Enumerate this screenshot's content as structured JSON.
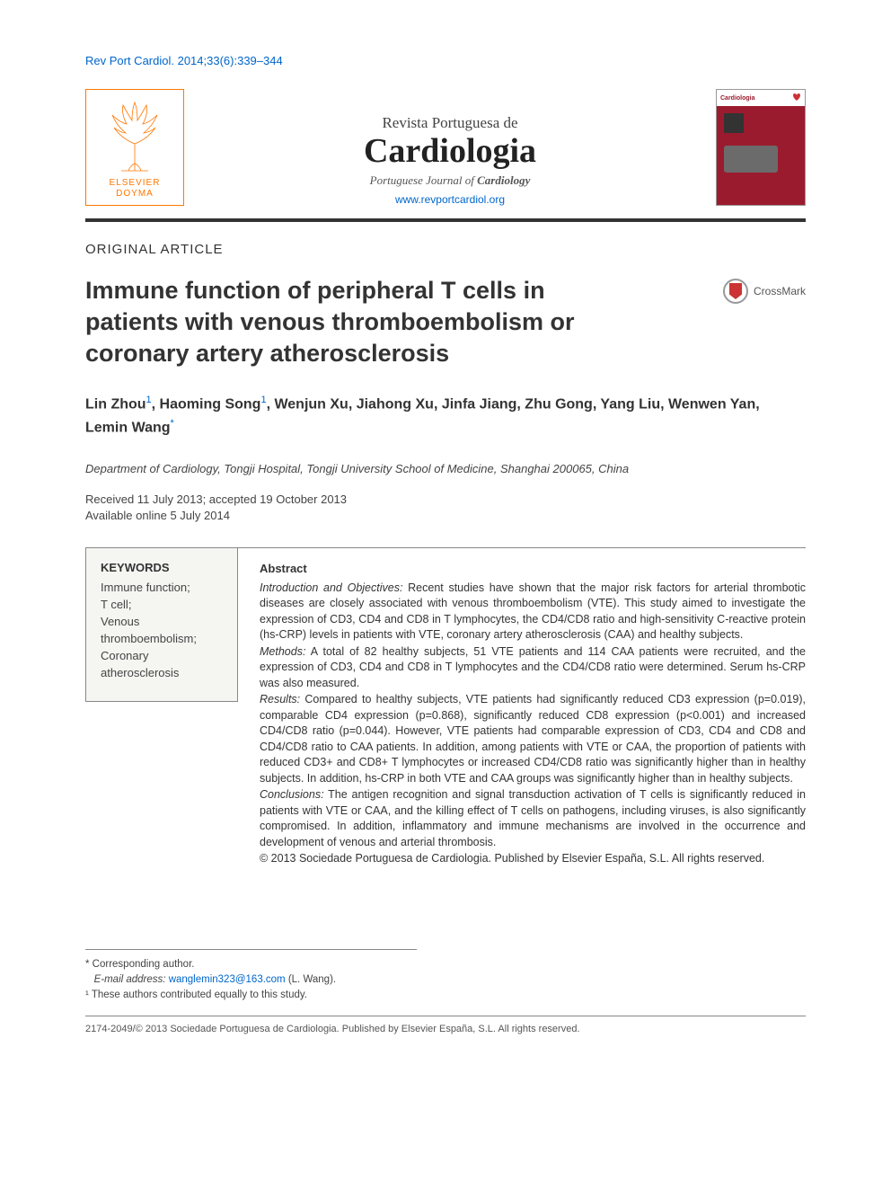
{
  "citation": "Rev Port Cardiol. 2014;33(6):339–344",
  "header": {
    "publisher_logo_top": "ELSEVIER",
    "publisher_logo_bottom": "DOYMA",
    "journal_overline": "Revista Portuguesa de",
    "journal_title": "Cardiologia",
    "journal_subtitle_pre": "Portuguese Journal of ",
    "journal_subtitle_bold": "Cardiology",
    "journal_url": "www.revportcardiol.org",
    "cover_label": "Cardiologia"
  },
  "article": {
    "type": "ORIGINAL ARTICLE",
    "title": "Immune function of peripheral T cells in patients with venous thromboembolism or coronary artery atherosclerosis",
    "crossmark": "CrossMark",
    "authors_html": "Lin Zhou<sup>1</sup>, Haoming Song<sup>1</sup>, Wenjun Xu, Jiahong Xu, Jinfa Jiang, Zhu Gong, Yang Liu, Wenwen Yan, Lemin Wang<sup>*</sup>",
    "affiliation": "Department of Cardiology, Tongji Hospital, Tongji University School of Medicine, Shanghai 200065, China",
    "received": "Received 11 July 2013; accepted 19 October 2013",
    "available": "Available online 5 July 2014"
  },
  "keywords": {
    "heading": "KEYWORDS",
    "items": "Immune function;\nT cell;\nVenous thromboembolism;\nCoronary atherosclerosis"
  },
  "abstract": {
    "heading": "Abstract",
    "intro_label": "Introduction and Objectives:",
    "intro_text": " Recent studies have shown that the major risk factors for arterial thrombotic diseases are closely associated with venous thromboembolism (VTE). This study aimed to investigate the expression of CD3, CD4 and CD8 in T lymphocytes, the CD4/CD8 ratio and high-sensitivity C-reactive protein (hs-CRP) levels in patients with VTE, coronary artery atherosclerosis (CAA) and healthy subjects.",
    "methods_label": "Methods:",
    "methods_text": " A total of 82 healthy subjects, 51 VTE patients and 114 CAA patients were recruited, and the expression of CD3, CD4 and CD8 in T lymphocytes and the CD4/CD8 ratio were determined. Serum hs-CRP was also measured.",
    "results_label": "Results:",
    "results_text": " Compared to healthy subjects, VTE patients had significantly reduced CD3 expression (p=0.019), comparable CD4 expression (p=0.868), significantly reduced CD8 expression (p<0.001) and increased CD4/CD8 ratio (p=0.044). However, VTE patients had comparable expression of CD3, CD4 and CD8 and CD4/CD8 ratio to CAA patients. In addition, among patients with VTE or CAA, the proportion of patients with reduced CD3+ and CD8+ T lymphocytes or increased CD4/CD8 ratio was significantly higher than in healthy subjects. In addition, hs-CRP in both VTE and CAA groups was significantly higher than in healthy subjects.",
    "concl_label": "Conclusions:",
    "concl_text": " The antigen recognition and signal transduction activation of T cells is significantly reduced in patients with VTE or CAA, and the killing effect of T cells on pathogens, including viruses, is also significantly compromised. In addition, inflammatory and immune mechanisms are involved in the occurrence and development of venous and arterial thrombosis.",
    "copyright": "© 2013 Sociedade Portuguesa de Cardiologia. Published by Elsevier España, S.L. All rights reserved."
  },
  "footnotes": {
    "corresponding": "* Corresponding author.",
    "email_label": "E-mail address: ",
    "email": "wanglemin323@163.com",
    "email_author": " (L. Wang).",
    "equal": "¹ These authors contributed equally to this study."
  },
  "bottom": "2174-2049/© 2013 Sociedade Portuguesa de Cardiologia. Published by Elsevier España, S.L. All rights reserved.",
  "colors": {
    "link": "#0066cc",
    "brand": "#ff7700",
    "cover": "#9b1b2e",
    "text": "#333333",
    "rule": "#888888"
  }
}
